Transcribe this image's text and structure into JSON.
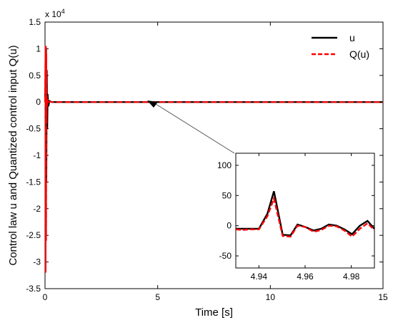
{
  "chart_data": [
    {
      "type": "line",
      "title": "",
      "xlabel": "Time [s]",
      "ylabel": "Control law u and Quantized control input Q(u)",
      "y_scale_note": "x 10",
      "y_scale_exponent": "4",
      "xlim": [
        0,
        15
      ],
      "ylim": [
        -3.5,
        1.5
      ],
      "x_ticks": [
        0,
        5,
        10,
        15
      ],
      "x_tick_labels": [
        "0",
        "5",
        "10",
        "15"
      ],
      "y_ticks": [
        1.5,
        1,
        0.5,
        0,
        -0.5,
        -1,
        -1.5,
        -2,
        -2.5,
        -3,
        -3.5
      ],
      "y_tick_labels": [
        "1.5",
        "1",
        "0.5",
        "0",
        "-0.5",
        "-1",
        "-1.5",
        "-2",
        "-2.5",
        "-3",
        "-3.5"
      ],
      "grid": false,
      "legend_position": "top-right",
      "series": [
        {
          "name": "u",
          "color": "#000000",
          "style": "solid",
          "x": [
            0,
            0.02,
            0.04,
            0.05,
            0.06,
            0.08,
            0.1,
            0.12,
            0.15,
            0.2,
            0.3,
            0.5,
            15
          ],
          "y": [
            0,
            0.3,
            -0.8,
            1.0,
            -1.5,
            0.6,
            -0.5,
            0.15,
            -0.08,
            0.02,
            0,
            0,
            0
          ]
        },
        {
          "name": "Q(u)",
          "color": "#ff0000",
          "style": "dashed",
          "x": [
            0,
            0.02,
            0.03,
            0.04,
            0.05,
            0.06,
            0.07,
            0.08,
            0.1,
            0.12,
            0.15,
            0.2,
            0.3,
            0.5,
            15
          ],
          "y": [
            0,
            1.05,
            -3.2,
            1.05,
            -2.6,
            0.9,
            -0.4,
            0.12,
            -0.08,
            0.05,
            -0.02,
            0.01,
            0,
            0,
            0
          ]
        }
      ],
      "annotation": {
        "arrow_from_data": [
          4.97,
          0
        ],
        "arrow_to_data": [
          4.75,
          0
        ],
        "target": "inset"
      }
    },
    {
      "type": "line",
      "title": "",
      "xlabel": "",
      "ylabel": "",
      "xlim": [
        4.93,
        4.99
      ],
      "ylim": [
        -70,
        120
      ],
      "x_ticks": [
        4.94,
        4.96,
        4.98
      ],
      "x_tick_labels": [
        "4.94",
        "4.96",
        "4.98"
      ],
      "y_ticks": [
        100,
        50,
        0,
        -50
      ],
      "y_tick_labels": [
        "100",
        "50",
        "0",
        "-50"
      ],
      "grid": false,
      "series": [
        {
          "name": "u",
          "color": "#000000",
          "style": "solid",
          "x": [
            4.93,
            4.933,
            4.9365,
            4.94,
            4.9437,
            4.9465,
            4.9503,
            4.9537,
            4.9567,
            4.96,
            4.9637,
            4.967,
            4.9703,
            4.9737,
            4.977,
            4.9803,
            4.9837,
            4.987,
            4.99
          ],
          "y": [
            -5,
            -5,
            -5,
            -5,
            20,
            57,
            -15,
            -16,
            2,
            -2,
            -8,
            -5,
            2,
            0,
            -6,
            -14,
            0,
            8,
            -5
          ]
        },
        {
          "name": "Q(u)",
          "color": "#ff0000",
          "style": "dashed",
          "x": [
            4.93,
            4.933,
            4.9365,
            4.94,
            4.9437,
            4.9465,
            4.9503,
            4.9537,
            4.9567,
            4.96,
            4.9637,
            4.967,
            4.9703,
            4.9737,
            4.977,
            4.9803,
            4.9837,
            4.987,
            4.99
          ],
          "y": [
            -6,
            -7,
            -6,
            -6,
            16,
            45,
            -17,
            -18,
            0,
            -2,
            -10,
            -7,
            0,
            -1,
            -8,
            -18,
            -5,
            4,
            -7
          ]
        }
      ]
    }
  ]
}
